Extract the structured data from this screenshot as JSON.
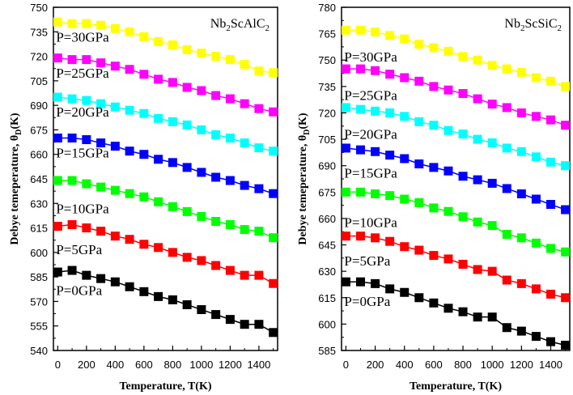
{
  "chart_data": [
    {
      "type": "line",
      "title": "Nb2ScAlC2",
      "title_parts": {
        "a": "Nb",
        "b": "2",
        "c": "ScAlC",
        "d": "2"
      },
      "xlabel": "Temperature, T(K)",
      "ylabel": "Debye temeperature, θD(K)",
      "ylabel_parts": {
        "main": "Debye temeperature, θ",
        "sub": "D",
        "tail": "(K)"
      },
      "xlim": [
        -30,
        1530
      ],
      "ylim": [
        540,
        750
      ],
      "xticks": [
        0,
        200,
        400,
        600,
        800,
        1000,
        1200,
        1400
      ],
      "yticks": [
        540,
        555,
        570,
        585,
        600,
        615,
        630,
        645,
        660,
        675,
        690,
        705,
        720,
        735,
        750
      ],
      "x": [
        0,
        100,
        200,
        300,
        400,
        500,
        600,
        700,
        800,
        900,
        1000,
        1100,
        1200,
        1300,
        1400,
        1500
      ],
      "series": [
        {
          "name": "P=30GPa",
          "color": "#ffff00",
          "label_y": 732,
          "values": [
            741,
            740,
            740,
            739,
            737,
            735,
            732,
            729,
            727,
            724,
            722,
            720,
            718,
            715,
            711,
            710
          ]
        },
        {
          "name": "P=25GPa",
          "color": "#ff00ff",
          "label_y": 710,
          "values": [
            719,
            718,
            718,
            716,
            714,
            712,
            709,
            706,
            704,
            701,
            699,
            696,
            694,
            691,
            688,
            686
          ]
        },
        {
          "name": "P=20GPa",
          "color": "#00ffff",
          "label_y": 686,
          "values": [
            695,
            694,
            693,
            691,
            689,
            687,
            685,
            682,
            680,
            678,
            675,
            672,
            670,
            667,
            664,
            662
          ]
        },
        {
          "name": "P=15GPa",
          "color": "#0000ff",
          "label_y": 661,
          "values": [
            670,
            670,
            669,
            667,
            665,
            662,
            660,
            657,
            655,
            652,
            649,
            646,
            644,
            641,
            639,
            636
          ]
        },
        {
          "name": "P=10GPa",
          "color": "#00ff00",
          "label_y": 627,
          "values": [
            644,
            644,
            642,
            640,
            638,
            636,
            634,
            631,
            628,
            625,
            622,
            619,
            617,
            614,
            613,
            609
          ]
        },
        {
          "name": "P=5GPa",
          "color": "#ff0000",
          "label_y": 602,
          "values": [
            616,
            617,
            615,
            613,
            610,
            608,
            605,
            603,
            600,
            597,
            595,
            592,
            589,
            586,
            586,
            581
          ]
        },
        {
          "name": "P=0GPa",
          "color": "#000000",
          "label_y": 577,
          "values": [
            588,
            589,
            586,
            584,
            582,
            579,
            576,
            573,
            571,
            568,
            565,
            562,
            559,
            556,
            556,
            551
          ]
        }
      ]
    },
    {
      "type": "line",
      "title": "Nb2ScSiC2",
      "title_parts": {
        "a": "Nb",
        "b": "2",
        "c": "ScSiC",
        "d": "2"
      },
      "xlabel": "Temperature, T(K)",
      "ylabel": "Debye temeperature, θD(K)",
      "ylabel_parts": {
        "main": "Debye temeperature, θ",
        "sub": "D",
        "tail": "(K)"
      },
      "xlim": [
        -30,
        1530
      ],
      "ylim": [
        585,
        780
      ],
      "xticks": [
        0,
        200,
        400,
        600,
        800,
        1000,
        1200,
        1400
      ],
      "yticks": [
        585,
        600,
        615,
        630,
        645,
        660,
        675,
        690,
        705,
        720,
        735,
        750,
        765,
        780
      ],
      "x": [
        0,
        100,
        200,
        300,
        400,
        500,
        600,
        700,
        800,
        900,
        1000,
        1100,
        1200,
        1300,
        1400,
        1500
      ],
      "series": [
        {
          "name": "P=30GPa",
          "color": "#ffff00",
          "label_y": 752,
          "values": [
            767,
            767,
            766,
            764,
            762,
            759,
            757,
            755,
            752,
            750,
            747,
            745,
            743,
            740,
            738,
            735
          ]
        },
        {
          "name": "P=25GPa",
          "color": "#ff00ff",
          "label_y": 730,
          "values": [
            745,
            745,
            744,
            742,
            740,
            738,
            735,
            733,
            731,
            728,
            725,
            723,
            720,
            718,
            716,
            713
          ]
        },
        {
          "name": "P=20GPa",
          "color": "#00ffff",
          "label_y": 708,
          "values": [
            723,
            722,
            721,
            720,
            718,
            715,
            713,
            710,
            708,
            705,
            703,
            700,
            698,
            695,
            692,
            690
          ]
        },
        {
          "name": "P=15GPa",
          "color": "#0000ff",
          "label_y": 686,
          "values": [
            700,
            699,
            698,
            696,
            694,
            691,
            689,
            687,
            684,
            682,
            680,
            677,
            674,
            671,
            668,
            665
          ]
        },
        {
          "name": "P=10GPa",
          "color": "#00ff00",
          "label_y": 658,
          "values": [
            675,
            675,
            674,
            673,
            671,
            669,
            666,
            664,
            661,
            658,
            656,
            651,
            649,
            646,
            643,
            641
          ]
        },
        {
          "name": "P=5GPa",
          "color": "#ff0000",
          "label_y": 636,
          "values": [
            650,
            650,
            649,
            647,
            644,
            642,
            639,
            637,
            634,
            631,
            630,
            625,
            623,
            620,
            617,
            615
          ]
        },
        {
          "name": "P=0GPa",
          "color": "#000000",
          "label_y": 613,
          "values": [
            624,
            624,
            623,
            620,
            618,
            615,
            612,
            609,
            607,
            604,
            604,
            598,
            596,
            593,
            590,
            588
          ]
        }
      ]
    }
  ]
}
